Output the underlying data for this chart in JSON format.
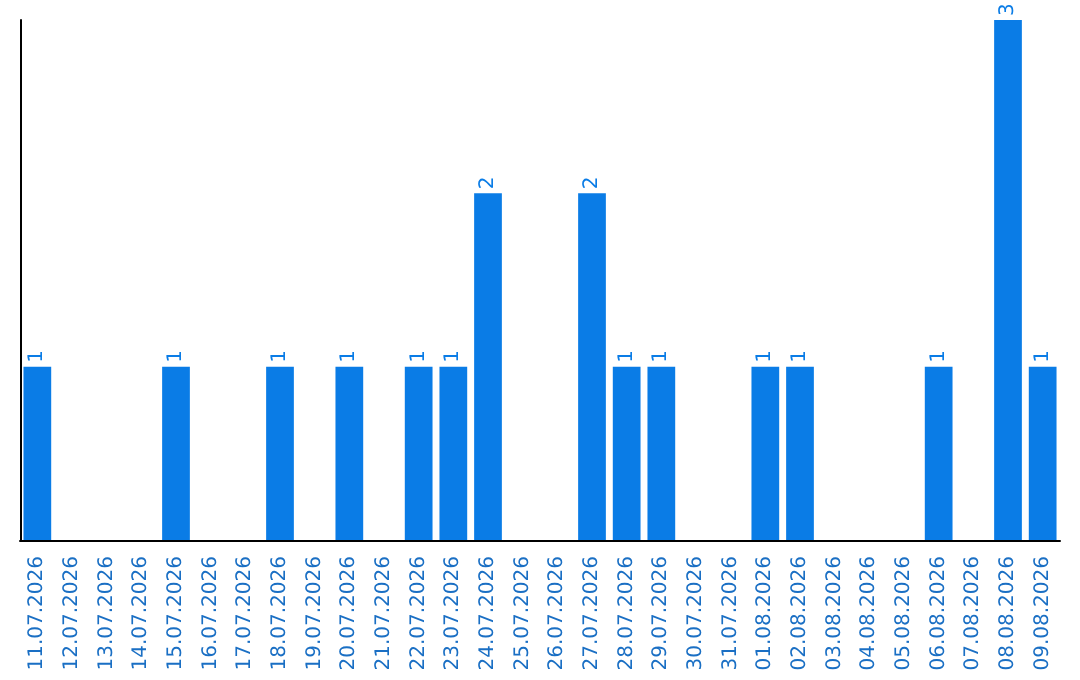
{
  "chart_data": {
    "type": "bar",
    "categories": [
      "11.07.2026",
      "12.07.2026",
      "13.07.2026",
      "14.07.2026",
      "15.07.2026",
      "16.07.2026",
      "17.07.2026",
      "18.07.2026",
      "19.07.2026",
      "20.07.2026",
      "21.07.2026",
      "22.07.2026",
      "23.07.2026",
      "24.07.2026",
      "25.07.2026",
      "26.07.2026",
      "27.07.2026",
      "28.07.2026",
      "29.07.2026",
      "30.07.2026",
      "31.07.2026",
      "01.08.2026",
      "02.08.2026",
      "03.08.2026",
      "04.08.2026",
      "05.08.2026",
      "06.08.2026",
      "07.08.2026",
      "08.08.2026",
      "09.08.2026"
    ],
    "values": [
      1,
      0,
      0,
      0,
      1,
      0,
      0,
      1,
      0,
      1,
      0,
      1,
      1,
      2,
      0,
      0,
      2,
      1,
      1,
      0,
      0,
      1,
      1,
      0,
      0,
      0,
      1,
      0,
      3,
      1
    ],
    "value_labels": [
      "1",
      null,
      null,
      null,
      "1",
      null,
      null,
      "1",
      null,
      "1",
      null,
      "1",
      "1",
      "2",
      null,
      null,
      "2",
      "1",
      "1",
      null,
      null,
      "1",
      "1",
      null,
      null,
      null,
      "1",
      null,
      "3",
      "1"
    ],
    "color": "#0a7ce6",
    "tick_labels": "x"
  }
}
